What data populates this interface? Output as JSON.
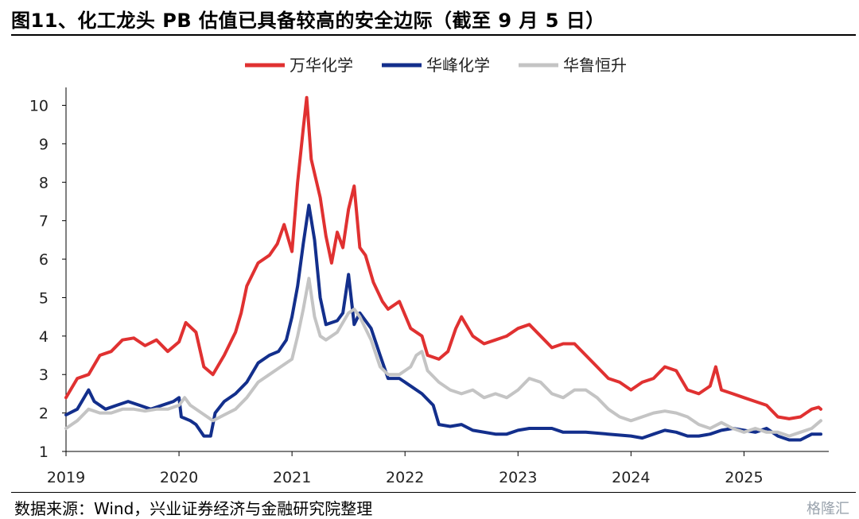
{
  "header": {
    "title": "图11、化工龙头 PB 估值已具备较高的安全边际（截至 9 月 5 日）"
  },
  "footer": {
    "source": "数据来源：Wind，兴业证券经济与金融研究院整理",
    "watermark": "格隆汇"
  },
  "chart_data": {
    "type": "line",
    "ylim": [
      1,
      10.3
    ],
    "yticks": [
      1,
      2,
      3,
      4,
      5,
      6,
      7,
      8,
      9,
      10
    ],
    "xlim": [
      2019.0,
      2025.68
    ],
    "xticks": [
      "2019",
      "2020",
      "2021",
      "2022",
      "2023",
      "2024",
      "2025"
    ],
    "legend_position": "top-center",
    "grid": false,
    "series": [
      {
        "name": "万华化学",
        "color": "#e03131",
        "points": [
          [
            2019.0,
            2.4
          ],
          [
            2019.1,
            2.9
          ],
          [
            2019.2,
            3.0
          ],
          [
            2019.3,
            3.5
          ],
          [
            2019.4,
            3.6
          ],
          [
            2019.5,
            3.9
          ],
          [
            2019.6,
            3.95
          ],
          [
            2019.7,
            3.75
          ],
          [
            2019.8,
            3.9
          ],
          [
            2019.9,
            3.6
          ],
          [
            2020.0,
            3.85
          ],
          [
            2020.06,
            4.35
          ],
          [
            2020.15,
            4.1
          ],
          [
            2020.22,
            3.2
          ],
          [
            2020.3,
            3.0
          ],
          [
            2020.4,
            3.5
          ],
          [
            2020.5,
            4.1
          ],
          [
            2020.55,
            4.6
          ],
          [
            2020.6,
            5.3
          ],
          [
            2020.7,
            5.9
          ],
          [
            2020.8,
            6.1
          ],
          [
            2020.87,
            6.4
          ],
          [
            2020.93,
            6.9
          ],
          [
            2021.0,
            6.2
          ],
          [
            2021.05,
            8.0
          ],
          [
            2021.1,
            9.4
          ],
          [
            2021.13,
            10.2
          ],
          [
            2021.17,
            8.6
          ],
          [
            2021.25,
            7.6
          ],
          [
            2021.3,
            6.6
          ],
          [
            2021.35,
            5.9
          ],
          [
            2021.4,
            6.7
          ],
          [
            2021.45,
            6.3
          ],
          [
            2021.5,
            7.3
          ],
          [
            2021.55,
            7.9
          ],
          [
            2021.6,
            6.3
          ],
          [
            2021.65,
            6.1
          ],
          [
            2021.72,
            5.4
          ],
          [
            2021.8,
            4.9
          ],
          [
            2021.85,
            4.7
          ],
          [
            2021.95,
            4.9
          ],
          [
            2022.05,
            4.2
          ],
          [
            2022.15,
            4.0
          ],
          [
            2022.2,
            3.5
          ],
          [
            2022.3,
            3.4
          ],
          [
            2022.38,
            3.6
          ],
          [
            2022.45,
            4.2
          ],
          [
            2022.5,
            4.5
          ],
          [
            2022.6,
            4.0
          ],
          [
            2022.7,
            3.8
          ],
          [
            2022.8,
            3.9
          ],
          [
            2022.9,
            4.0
          ],
          [
            2023.0,
            4.2
          ],
          [
            2023.1,
            4.3
          ],
          [
            2023.2,
            4.0
          ],
          [
            2023.3,
            3.7
          ],
          [
            2023.4,
            3.8
          ],
          [
            2023.5,
            3.8
          ],
          [
            2023.6,
            3.5
          ],
          [
            2023.7,
            3.2
          ],
          [
            2023.8,
            2.9
          ],
          [
            2023.9,
            2.8
          ],
          [
            2024.0,
            2.6
          ],
          [
            2024.1,
            2.8
          ],
          [
            2024.2,
            2.9
          ],
          [
            2024.3,
            3.2
          ],
          [
            2024.4,
            3.1
          ],
          [
            2024.5,
            2.6
          ],
          [
            2024.6,
            2.5
          ],
          [
            2024.7,
            2.7
          ],
          [
            2024.75,
            3.2
          ],
          [
            2024.8,
            2.6
          ],
          [
            2024.9,
            2.5
          ],
          [
            2025.0,
            2.4
          ],
          [
            2025.1,
            2.3
          ],
          [
            2025.2,
            2.2
          ],
          [
            2025.3,
            1.9
          ],
          [
            2025.4,
            1.85
          ],
          [
            2025.5,
            1.9
          ],
          [
            2025.6,
            2.1
          ],
          [
            2025.66,
            2.15
          ],
          [
            2025.68,
            2.1
          ]
        ]
      },
      {
        "name": "华峰化学",
        "color": "#132f8c",
        "points": [
          [
            2019.0,
            1.95
          ],
          [
            2019.1,
            2.1
          ],
          [
            2019.2,
            2.6
          ],
          [
            2019.25,
            2.3
          ],
          [
            2019.35,
            2.1
          ],
          [
            2019.45,
            2.2
          ],
          [
            2019.55,
            2.3
          ],
          [
            2019.65,
            2.2
          ],
          [
            2019.75,
            2.1
          ],
          [
            2019.85,
            2.2
          ],
          [
            2019.95,
            2.3
          ],
          [
            2020.0,
            2.4
          ],
          [
            2020.02,
            1.9
          ],
          [
            2020.1,
            1.8
          ],
          [
            2020.15,
            1.7
          ],
          [
            2020.22,
            1.4
          ],
          [
            2020.28,
            1.4
          ],
          [
            2020.32,
            2.0
          ],
          [
            2020.4,
            2.3
          ],
          [
            2020.5,
            2.5
          ],
          [
            2020.6,
            2.8
          ],
          [
            2020.7,
            3.3
          ],
          [
            2020.8,
            3.5
          ],
          [
            2020.88,
            3.6
          ],
          [
            2020.95,
            3.9
          ],
          [
            2021.0,
            4.5
          ],
          [
            2021.05,
            5.3
          ],
          [
            2021.1,
            6.4
          ],
          [
            2021.15,
            7.4
          ],
          [
            2021.2,
            6.5
          ],
          [
            2021.25,
            5.0
          ],
          [
            2021.3,
            4.3
          ],
          [
            2021.4,
            4.4
          ],
          [
            2021.45,
            4.6
          ],
          [
            2021.5,
            5.6
          ],
          [
            2021.55,
            4.3
          ],
          [
            2021.6,
            4.6
          ],
          [
            2021.7,
            4.2
          ],
          [
            2021.78,
            3.5
          ],
          [
            2021.85,
            2.9
          ],
          [
            2021.95,
            2.9
          ],
          [
            2022.05,
            2.7
          ],
          [
            2022.15,
            2.5
          ],
          [
            2022.25,
            2.2
          ],
          [
            2022.3,
            1.7
          ],
          [
            2022.4,
            1.65
          ],
          [
            2022.5,
            1.7
          ],
          [
            2022.6,
            1.55
          ],
          [
            2022.8,
            1.45
          ],
          [
            2022.9,
            1.45
          ],
          [
            2023.0,
            1.55
          ],
          [
            2023.1,
            1.6
          ],
          [
            2023.2,
            1.6
          ],
          [
            2023.3,
            1.6
          ],
          [
            2023.4,
            1.5
          ],
          [
            2023.6,
            1.5
          ],
          [
            2023.8,
            1.45
          ],
          [
            2024.0,
            1.4
          ],
          [
            2024.1,
            1.35
          ],
          [
            2024.2,
            1.45
          ],
          [
            2024.3,
            1.55
          ],
          [
            2024.4,
            1.5
          ],
          [
            2024.5,
            1.4
          ],
          [
            2024.6,
            1.4
          ],
          [
            2024.7,
            1.45
          ],
          [
            2024.8,
            1.55
          ],
          [
            2024.9,
            1.6
          ],
          [
            2025.0,
            1.55
          ],
          [
            2025.1,
            1.5
          ],
          [
            2025.2,
            1.6
          ],
          [
            2025.3,
            1.4
          ],
          [
            2025.4,
            1.3
          ],
          [
            2025.5,
            1.3
          ],
          [
            2025.6,
            1.45
          ],
          [
            2025.68,
            1.45
          ]
        ]
      },
      {
        "name": "华鲁恒升",
        "color": "#c4c4c4",
        "points": [
          [
            2019.0,
            1.6
          ],
          [
            2019.1,
            1.8
          ],
          [
            2019.2,
            2.1
          ],
          [
            2019.3,
            2.0
          ],
          [
            2019.4,
            2.0
          ],
          [
            2019.5,
            2.1
          ],
          [
            2019.6,
            2.1
          ],
          [
            2019.7,
            2.05
          ],
          [
            2019.8,
            2.1
          ],
          [
            2019.9,
            2.1
          ],
          [
            2020.0,
            2.2
          ],
          [
            2020.05,
            2.4
          ],
          [
            2020.1,
            2.2
          ],
          [
            2020.2,
            2.0
          ],
          [
            2020.3,
            1.8
          ],
          [
            2020.4,
            1.95
          ],
          [
            2020.5,
            2.1
          ],
          [
            2020.6,
            2.4
          ],
          [
            2020.7,
            2.8
          ],
          [
            2020.8,
            3.0
          ],
          [
            2020.9,
            3.2
          ],
          [
            2021.0,
            3.4
          ],
          [
            2021.05,
            4.0
          ],
          [
            2021.1,
            4.7
          ],
          [
            2021.15,
            5.5
          ],
          [
            2021.2,
            4.5
          ],
          [
            2021.25,
            4.0
          ],
          [
            2021.3,
            3.9
          ],
          [
            2021.4,
            4.1
          ],
          [
            2021.5,
            4.6
          ],
          [
            2021.55,
            4.7
          ],
          [
            2021.6,
            4.5
          ],
          [
            2021.7,
            3.9
          ],
          [
            2021.78,
            3.2
          ],
          [
            2021.85,
            3.0
          ],
          [
            2021.95,
            3.0
          ],
          [
            2022.05,
            3.2
          ],
          [
            2022.1,
            3.5
          ],
          [
            2022.15,
            3.6
          ],
          [
            2022.2,
            3.1
          ],
          [
            2022.3,
            2.8
          ],
          [
            2022.4,
            2.6
          ],
          [
            2022.5,
            2.5
          ],
          [
            2022.6,
            2.6
          ],
          [
            2022.7,
            2.4
          ],
          [
            2022.8,
            2.5
          ],
          [
            2022.9,
            2.4
          ],
          [
            2023.0,
            2.6
          ],
          [
            2023.1,
            2.9
          ],
          [
            2023.2,
            2.8
          ],
          [
            2023.3,
            2.5
          ],
          [
            2023.4,
            2.4
          ],
          [
            2023.5,
            2.6
          ],
          [
            2023.6,
            2.6
          ],
          [
            2023.7,
            2.4
          ],
          [
            2023.8,
            2.1
          ],
          [
            2023.9,
            1.9
          ],
          [
            2024.0,
            1.8
          ],
          [
            2024.1,
            1.9
          ],
          [
            2024.2,
            2.0
          ],
          [
            2024.3,
            2.05
          ],
          [
            2024.4,
            2.0
          ],
          [
            2024.5,
            1.9
          ],
          [
            2024.6,
            1.7
          ],
          [
            2024.7,
            1.6
          ],
          [
            2024.8,
            1.75
          ],
          [
            2024.9,
            1.6
          ],
          [
            2025.0,
            1.5
          ],
          [
            2025.1,
            1.6
          ],
          [
            2025.2,
            1.5
          ],
          [
            2025.3,
            1.5
          ],
          [
            2025.4,
            1.4
          ],
          [
            2025.5,
            1.5
          ],
          [
            2025.6,
            1.6
          ],
          [
            2025.68,
            1.8
          ]
        ]
      }
    ]
  }
}
